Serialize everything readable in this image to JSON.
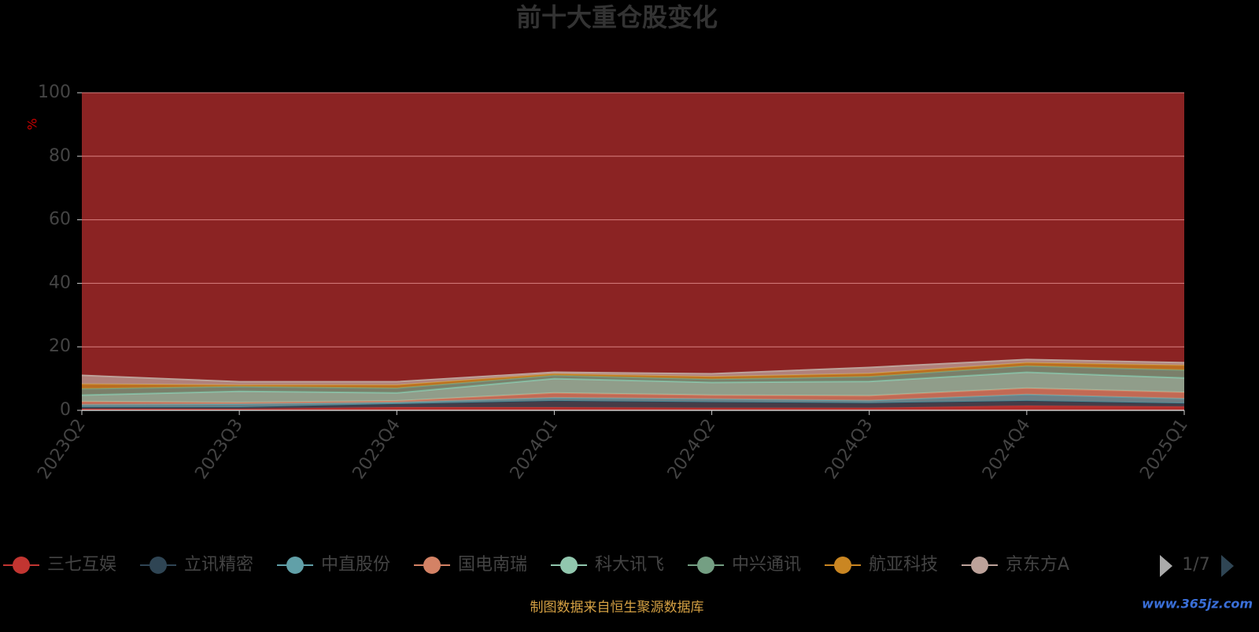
{
  "chart_data": {
    "type": "stacked_area",
    "title": "前十大重仓股变化",
    "y_label": "%",
    "categories": [
      "2023Q2",
      "2023Q3",
      "2023Q4",
      "2024Q1",
      "2024Q2",
      "2024Q3",
      "2024Q4",
      "2025Q1"
    ],
    "ylim": [
      0,
      100
    ],
    "yticks": [
      0,
      20,
      40,
      60,
      80,
      100
    ],
    "grid": true,
    "plot_background": "#8b2323",
    "series": [
      {
        "name": "三七互娱",
        "color": "#c23531",
        "values": [
          0.5,
          0.5,
          1.0,
          1.0,
          0.8,
          0.8,
          1.5,
          1.2
        ]
      },
      {
        "name": "立讯精密",
        "color": "#2f4554",
        "values": [
          0.5,
          0.5,
          1.0,
          2.0,
          1.8,
          1.5,
          1.5,
          1.0
        ]
      },
      {
        "name": "中直股份",
        "color": "#61a0a8",
        "values": [
          0.8,
          1.0,
          0.5,
          1.0,
          1.0,
          0.8,
          2.0,
          1.5
        ]
      },
      {
        "name": "国电南瑞",
        "color": "#d48265",
        "values": [
          1.0,
          0.5,
          0.5,
          1.5,
          1.2,
          1.5,
          2.0,
          2.0
        ]
      },
      {
        "name": "科大讯飞",
        "color": "#91c7ae",
        "values": [
          2.0,
          3.5,
          2.5,
          4.5,
          4.0,
          4.5,
          5.0,
          4.5
        ]
      },
      {
        "name": "中兴通讯",
        "color": "#749f83",
        "values": [
          2.0,
          1.5,
          1.5,
          1.0,
          1.0,
          1.5,
          2.0,
          2.5
        ]
      },
      {
        "name": "航亚科技",
        "color": "#ca8622",
        "values": [
          1.5,
          0.5,
          1.0,
          0.5,
          0.8,
          1.0,
          1.0,
          1.5
        ]
      },
      {
        "name": "京东方A",
        "color": "#bda29a",
        "values": [
          2.7,
          1.0,
          1.0,
          0.5,
          0.9,
          1.9,
          1.0,
          0.8
        ]
      }
    ],
    "legend_page": "1/7",
    "source": "制图数据来自恒生聚源数据库",
    "watermark": "www.365jz.com"
  }
}
